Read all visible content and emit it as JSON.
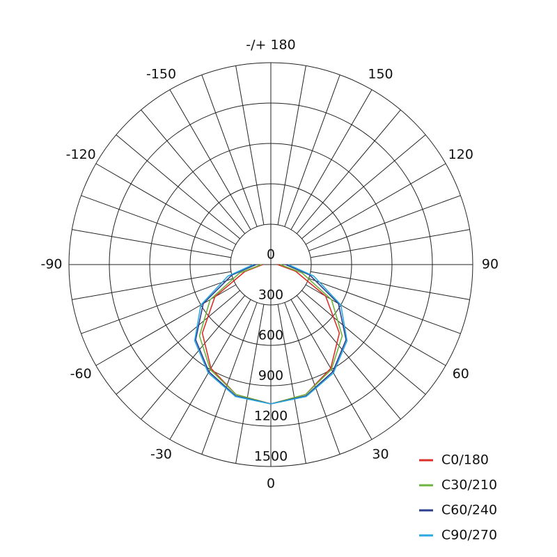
{
  "chart_data": {
    "type": "polar",
    "theta": [
      -90,
      -75,
      -60,
      -45,
      -30,
      -15,
      0,
      15,
      30,
      45,
      60,
      75,
      90
    ],
    "rlim": [
      0,
      1500
    ],
    "rticks": [
      0,
      300,
      600,
      900,
      1200,
      1500
    ],
    "thetaticks": [
      0,
      30,
      60,
      90,
      120,
      150,
      {
        "value": 180,
        "label": "-/+ 180"
      },
      -150,
      -120,
      -90,
      -60,
      -30
    ],
    "grid": true,
    "legend": "lower right",
    "series": [
      {
        "name": "C0/180",
        "color": "#d9302a",
        "values": [
          60,
          200,
          480,
          720,
          890,
          1000,
          1035,
          1000,
          890,
          720,
          470,
          190,
          50
        ]
      },
      {
        "name": "C30/210",
        "color": "#6db33f",
        "values": [
          70,
          240,
          520,
          750,
          900,
          1000,
          1035,
          1000,
          900,
          750,
          520,
          240,
          70
        ]
      },
      {
        "name": "C60/240",
        "color": "#2b3f8c",
        "values": [
          110,
          300,
          580,
          790,
          920,
          1010,
          1035,
          1010,
          920,
          790,
          580,
          300,
          110
        ]
      },
      {
        "name": "C90/270",
        "color": "#2aa7e0",
        "values": [
          130,
          330,
          600,
          800,
          930,
          1015,
          1035,
          1015,
          930,
          800,
          600,
          330,
          130
        ]
      }
    ]
  }
}
